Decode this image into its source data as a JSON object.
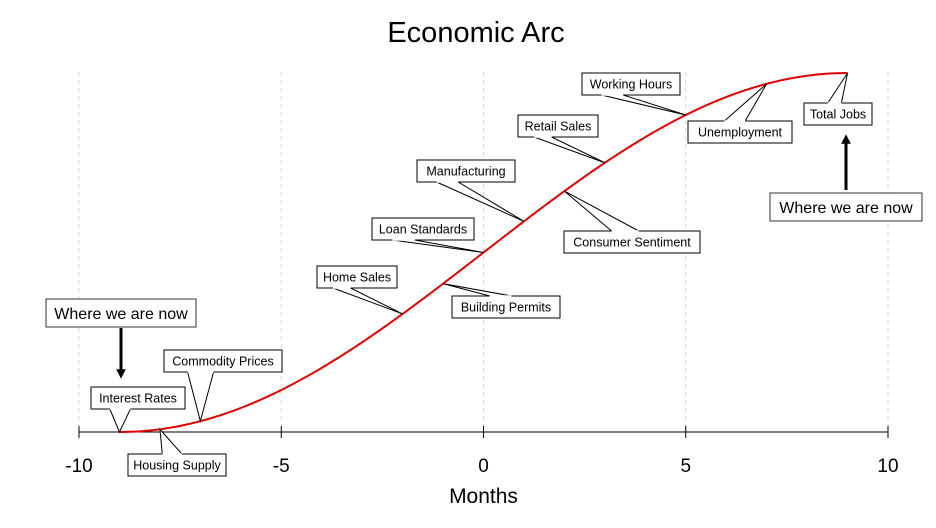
{
  "chart_data": {
    "type": "line",
    "title": "Economic Arc",
    "xlabel": "Months",
    "ylabel": "",
    "xlim": [
      -10,
      10
    ],
    "x_ticks": [
      -10,
      -5,
      0,
      5,
      10
    ],
    "x_tick_labels": [
      "-10",
      "-5",
      "0",
      "5",
      "10"
    ],
    "grid": {
      "vertical": true,
      "horizontal": false,
      "style": "dashed"
    },
    "series": [
      {
        "color": "#e00000",
        "curve": "s-curve",
        "x_start": -9,
        "x_end": 9
      }
    ],
    "annotations": [
      {
        "text": "Interest Rates",
        "x": -9
      },
      {
        "text": "Housing Supply",
        "x": -8
      },
      {
        "text": "Commodity Prices",
        "x": -7
      },
      {
        "text": "Home Sales",
        "x": -2
      },
      {
        "text": "Building Permits",
        "x": -1
      },
      {
        "text": "Loan Standards",
        "x": 0
      },
      {
        "text": "Manufacturing",
        "x": 1
      },
      {
        "text": "Consumer Sentiment",
        "x": 2
      },
      {
        "text": "Retail Sales",
        "x": 3
      },
      {
        "text": "Working Hours",
        "x": 5
      },
      {
        "text": "Unemployment",
        "x": 7
      },
      {
        "text": "Total Jobs",
        "x": 9
      }
    ],
    "markers": [
      {
        "text": "Where we are now",
        "x": -9,
        "direction": "down"
      },
      {
        "text": "Where we are now",
        "x": 9,
        "direction": "up"
      }
    ]
  }
}
